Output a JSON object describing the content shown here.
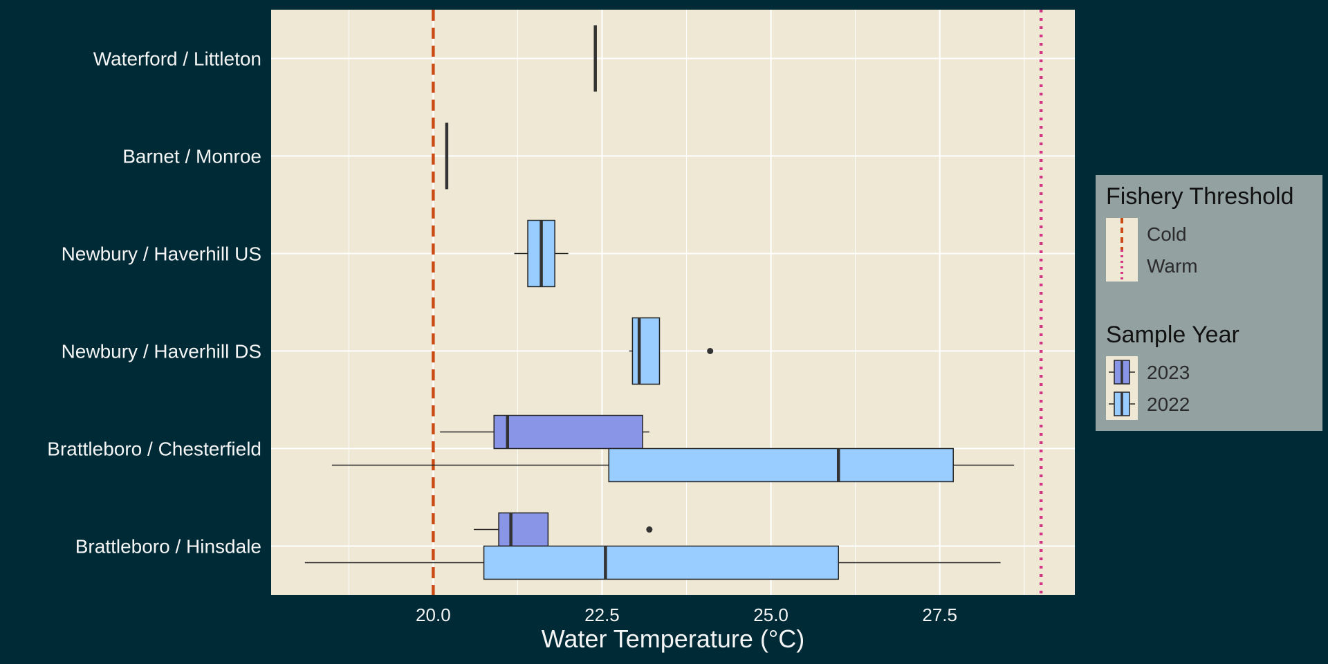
{
  "chart_data": {
    "type": "boxplot",
    "orientation": "horizontal",
    "xlabel": "Water Temperature (°C)",
    "ylabel": "",
    "xlim": [
      17.6,
      29.5
    ],
    "xticks": [
      20.0,
      22.5,
      25.0,
      27.5
    ],
    "xtick_labels": [
      "20.0",
      "22.5",
      "25.0",
      "27.5"
    ],
    "grid": true,
    "categories": [
      "Waterford / Littleton",
      "Barnet / Monroe",
      "Newbury / Haverhill US",
      "Newbury / Haverhill DS",
      "Brattleboro / Chesterfield",
      "Brattleboro / Hinsdale"
    ],
    "series": [
      {
        "name": "2023",
        "color": "#8996e8",
        "boxes": [
          {
            "category": "Brattleboro / Chesterfield",
            "whisker_low": 20.1,
            "q1": 20.9,
            "median": 21.1,
            "q3": 23.1,
            "whisker_high": 23.2,
            "outliers": []
          },
          {
            "category": "Brattleboro / Hinsdale",
            "whisker_low": 20.6,
            "q1": 20.97,
            "median": 21.15,
            "q3": 21.7,
            "whisker_high": 21.7,
            "outliers": [
              23.2
            ]
          }
        ]
      },
      {
        "name": "2022",
        "color": "#99ccff",
        "boxes": [
          {
            "category": "Waterford / Littleton",
            "whisker_low": 22.4,
            "q1": 22.4,
            "median": 22.4,
            "q3": 22.4,
            "whisker_high": 22.4,
            "outliers": []
          },
          {
            "category": "Barnet / Monroe",
            "whisker_low": 20.2,
            "q1": 20.2,
            "median": 20.2,
            "q3": 20.2,
            "whisker_high": 20.2,
            "outliers": []
          },
          {
            "category": "Newbury / Haverhill US",
            "whisker_low": 21.2,
            "q1": 21.4,
            "median": 21.6,
            "q3": 21.8,
            "whisker_high": 22.0,
            "outliers": []
          },
          {
            "category": "Newbury / Haverhill DS",
            "whisker_low": 22.9,
            "q1": 22.95,
            "median": 23.05,
            "q3": 23.35,
            "whisker_high": 23.35,
            "outliers": [
              24.1
            ]
          },
          {
            "category": "Brattleboro / Chesterfield",
            "whisker_low": 18.5,
            "q1": 22.6,
            "median": 26.0,
            "q3": 27.7,
            "whisker_high": 28.6,
            "outliers": []
          },
          {
            "category": "Brattleboro / Hinsdale",
            "whisker_low": 18.1,
            "q1": 20.75,
            "median": 22.55,
            "q3": 26.0,
            "whisker_high": 28.4,
            "outliers": []
          }
        ]
      }
    ],
    "thresholds": [
      {
        "name": "Cold",
        "value": 20.0,
        "color": "#cb4b16",
        "linetype": "dashed"
      },
      {
        "name": "Warm",
        "value": 29.0,
        "color": "#d33682",
        "linetype": "dotted"
      }
    ],
    "legend_placement": "right",
    "legends": [
      {
        "title": "Fishery Threshold",
        "entries": [
          "Cold",
          "Warm"
        ]
      },
      {
        "title": "Sample Year",
        "entries": [
          "2023",
          "2022"
        ]
      }
    ]
  },
  "colors": {
    "background": "#002b36",
    "panel": "#eee8d5",
    "grid": "#ffffff",
    "text": "#f5f5f5",
    "legend_background": "#93a1a1"
  }
}
